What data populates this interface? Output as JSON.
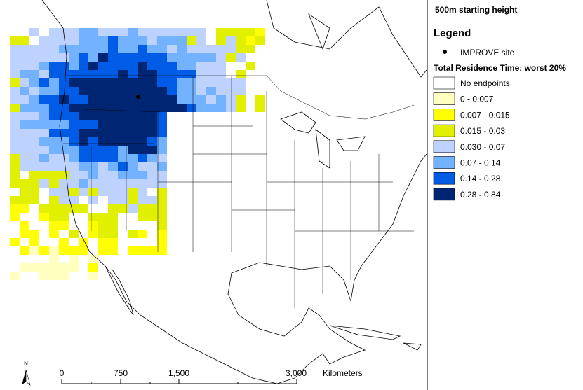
{
  "header": {
    "title": "500m starting height"
  },
  "legend": {
    "title": "Legend",
    "site_label": "IMPROVE site",
    "subtitle": "Total Residence Time: worst 20%",
    "classes": [
      {
        "label": "No endpoints",
        "color": "#ffffff"
      },
      {
        "label": "0 - 0.007",
        "color": "#ffffc0"
      },
      {
        "label": "0.007 - 0.015",
        "color": "#ffff00"
      },
      {
        "label": "0.015 - 0.03",
        "color": "#e1f000"
      },
      {
        "label": "0.030 - 0.07",
        "color": "#bed2ff"
      },
      {
        "label": "0.07 - 0.14",
        "color": "#73b2ff"
      },
      {
        "label": "0.14 - 0.28",
        "color": "#005ce6"
      },
      {
        "label": "0.28 - 0.84",
        "color": "#002673"
      }
    ]
  },
  "scale_bar": {
    "labels": [
      "0",
      "750",
      "1,500",
      "3,000"
    ],
    "unit": "Kilometers"
  },
  "north_arrow": {
    "label": "N"
  }
}
